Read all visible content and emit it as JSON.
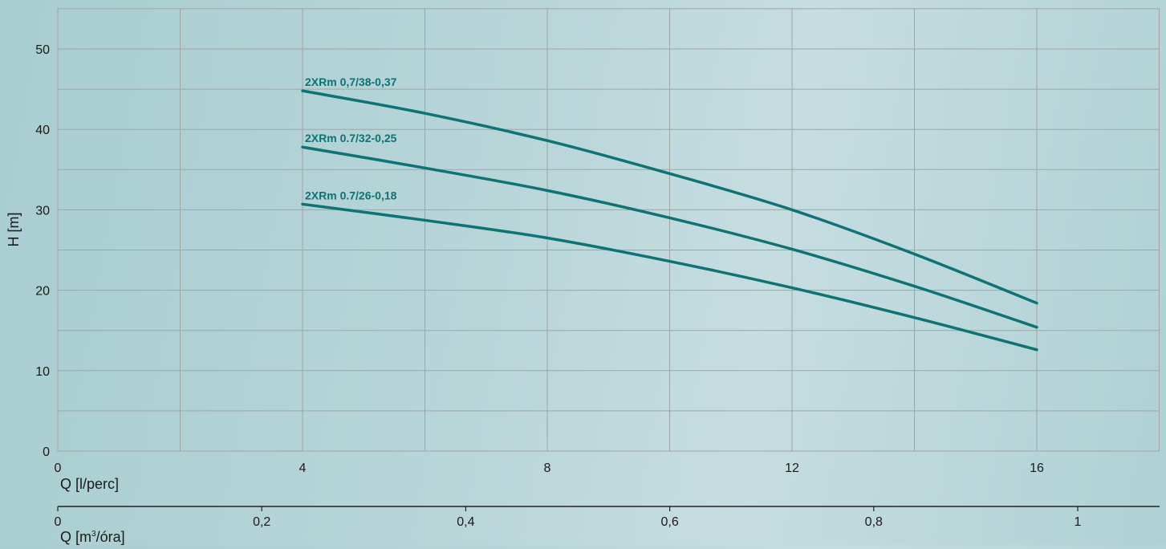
{
  "chart_data": {
    "type": "line",
    "title": "",
    "xlabel": "Q [l/perc]",
    "ylabel": "H [m]",
    "xlim": [
      0,
      18.5
    ],
    "ylim": [
      0,
      55
    ],
    "x_ticks": [
      0,
      4,
      8,
      12,
      16
    ],
    "x_tick_labels": [
      "0",
      "4",
      "8",
      "12",
      "16"
    ],
    "y_ticks": [
      0,
      10,
      20,
      30,
      40,
      50
    ],
    "y_tick_labels": [
      "0",
      "10",
      "20",
      "30",
      "40",
      "50"
    ],
    "grid": true,
    "secondary_x_axis": {
      "label_main": "Q [m",
      "label_sup": "3",
      "label_tail": "/óra]",
      "ticks": [
        0,
        0.2,
        0.4,
        0.6,
        0.8,
        1.0
      ],
      "tick_labels": [
        "0",
        "0,2",
        "0,4",
        "0,6",
        "0,8",
        "1"
      ],
      "xlim": [
        0,
        1.078
      ]
    },
    "series": [
      {
        "name": "2XRm 0,7/38-0,37",
        "x": [
          4,
          6,
          8,
          10,
          12,
          14,
          16
        ],
        "y": [
          44.8,
          42.0,
          38.6,
          34.5,
          30.0,
          24.5,
          18.4
        ]
      },
      {
        "name": "2XRm 0.7/32-0,25",
        "x": [
          4,
          6,
          8,
          10,
          12,
          14,
          16
        ],
        "y": [
          37.8,
          35.2,
          32.4,
          29.0,
          25.1,
          20.5,
          15.4
        ]
      },
      {
        "name": "2XRm 0.7/26-0,18",
        "x": [
          4,
          6,
          8,
          10,
          12,
          14,
          16
        ],
        "y": [
          30.7,
          28.7,
          26.5,
          23.6,
          20.3,
          16.6,
          12.6
        ]
      }
    ],
    "colors": {
      "line": "#0d7374",
      "series_label": "#0d7374",
      "grid": "#a3a3a3",
      "axis_text": "#1a1a1a"
    }
  }
}
